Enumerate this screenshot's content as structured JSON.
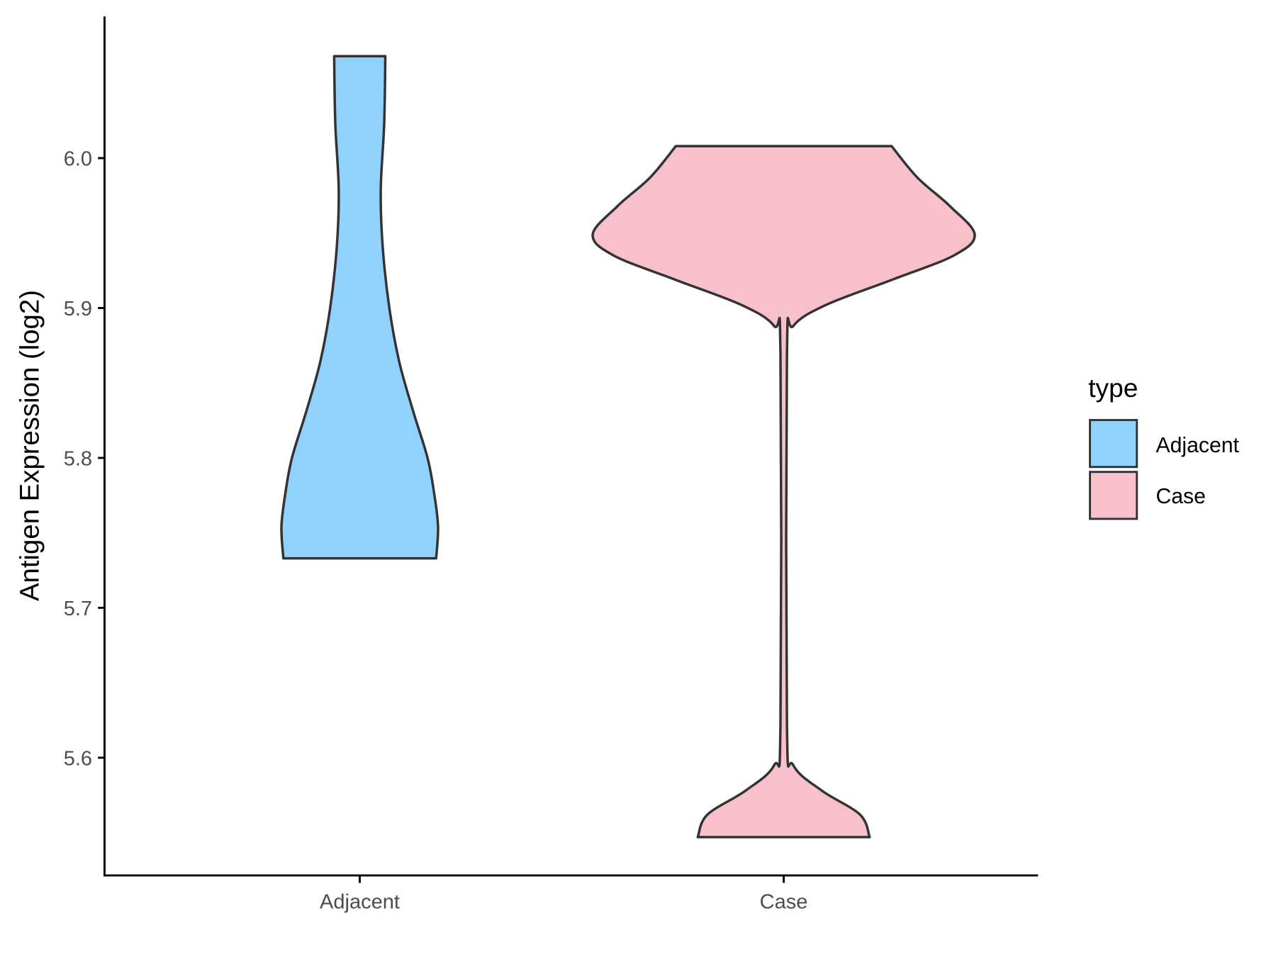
{
  "chart_data": {
    "type": "violin",
    "title": "",
    "xlabel": "",
    "ylabel": "Antigen Expression (log2)",
    "categories": [
      "Adjacent",
      "Case"
    ],
    "ylim": [
      5.521,
      6.095
    ],
    "yticks": [
      5.6,
      5.7,
      5.8,
      5.9,
      6.0
    ],
    "ytick_labels": [
      "5.6",
      "5.7",
      "5.8",
      "5.9",
      "6.0"
    ],
    "grid": false,
    "legend": {
      "title": "type",
      "position": "right",
      "entries": [
        "Adjacent",
        "Case"
      ]
    },
    "colors": {
      "Adjacent": "#91d2fc",
      "Case": "#f8c0cb",
      "outline": "#333333"
    },
    "series": [
      {
        "name": "Adjacent",
        "min": 5.733,
        "max": 6.068,
        "profile": [
          {
            "y": 6.068,
            "density": 0.134
          },
          {
            "y": 6.023,
            "density": 0.128
          },
          {
            "y": 5.979,
            "density": 0.11
          },
          {
            "y": 5.941,
            "density": 0.12
          },
          {
            "y": 5.9,
            "density": 0.155
          },
          {
            "y": 5.864,
            "density": 0.207
          },
          {
            "y": 5.831,
            "density": 0.28
          },
          {
            "y": 5.8,
            "density": 0.355
          },
          {
            "y": 5.776,
            "density": 0.39
          },
          {
            "y": 5.754,
            "density": 0.41
          },
          {
            "y": 5.733,
            "density": 0.4
          }
        ]
      },
      {
        "name": "Case",
        "min": 5.547,
        "max": 6.008,
        "profile": [
          {
            "y": 6.008,
            "density": 0.565
          },
          {
            "y": 5.987,
            "density": 0.7
          },
          {
            "y": 5.968,
            "density": 0.87
          },
          {
            "y": 5.949,
            "density": 1.0
          },
          {
            "y": 5.935,
            "density": 0.89
          },
          {
            "y": 5.919,
            "density": 0.57
          },
          {
            "y": 5.902,
            "density": 0.22
          },
          {
            "y": 5.888,
            "density": 0.05
          },
          {
            "y": 5.869,
            "density": 0.017
          },
          {
            "y": 5.622,
            "density": 0.017
          },
          {
            "y": 5.595,
            "density": 0.05
          },
          {
            "y": 5.578,
            "density": 0.2
          },
          {
            "y": 5.562,
            "density": 0.4
          },
          {
            "y": 5.547,
            "density": 0.45
          }
        ]
      }
    ]
  }
}
